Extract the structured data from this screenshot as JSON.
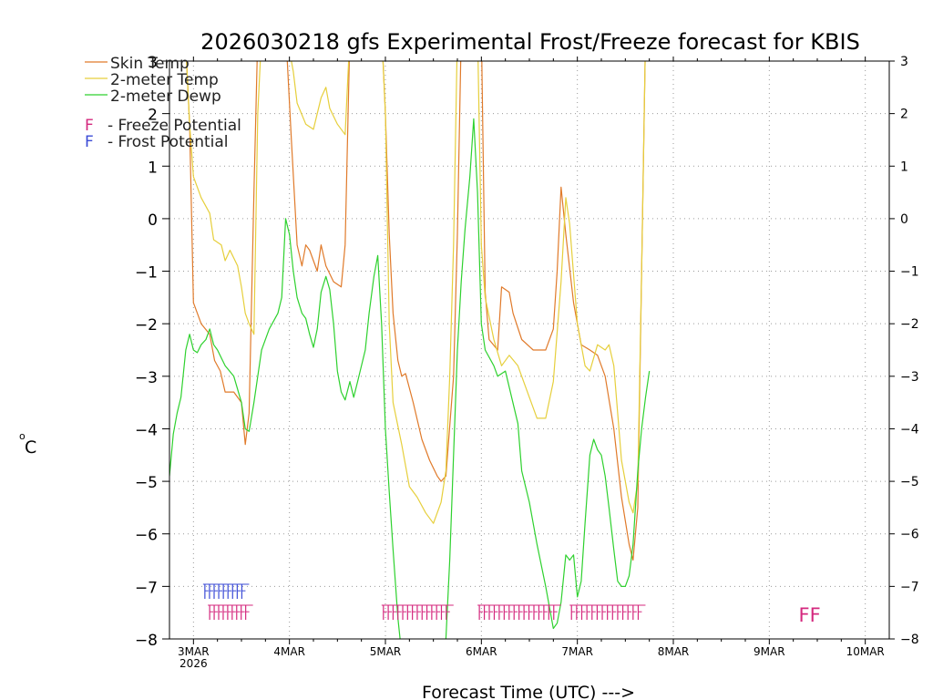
{
  "chart_data": {
    "type": "line",
    "title": "2026030218 gfs Experimental Frost/Freeze forecast for KBIS",
    "xlabel": "Forecast Time (UTC) --->",
    "ylabel": "°C",
    "ylabel_degree": "o",
    "ylabel_unit": "C",
    "ylim": [
      -8,
      3
    ],
    "xlim": [
      -0.25,
      7.25
    ],
    "yticks": [
      -8,
      -7,
      -6,
      -5,
      -4,
      -3,
      -2,
      -1,
      0,
      1,
      2,
      3
    ],
    "ytick_labels": [
      "−8",
      "−7",
      "−6",
      "−5",
      "−4",
      "−3",
      "−2",
      "−1",
      "0",
      "1",
      "2",
      "3"
    ],
    "right_ytick_labels": [
      "−8",
      "−7",
      "−6",
      "−5",
      "−4",
      "−3",
      "−2",
      "−1",
      "0",
      "1",
      "2",
      "3"
    ],
    "x_ticks": [
      {
        "x": 0,
        "label": "3MAR",
        "sublabel": "2026"
      },
      {
        "x": 1,
        "label": "4MAR"
      },
      {
        "x": 2,
        "label": "5MAR"
      },
      {
        "x": 3,
        "label": "6MAR"
      },
      {
        "x": 4,
        "label": "7MAR"
      },
      {
        "x": 5,
        "label": "8MAR"
      },
      {
        "x": 6,
        "label": "9MAR"
      },
      {
        "x": 7,
        "label": "10MAR"
      }
    ],
    "grid": true,
    "colors": {
      "skin": "#e07a2a",
      "temp2m": "#e6cf3c",
      "dewp": "#2ed12e",
      "freeze": "#d4287e",
      "frost": "#3b4bd6"
    },
    "legend": {
      "skin_temp": "Skin Temp",
      "temp_2m": "2-meter Temp",
      "dewp_2m": "2-meter Dewp",
      "freeze_letter": "F",
      "freeze_text": "- Freeze Potential",
      "frost_letter": "F",
      "frost_text": "- Frost Potential"
    },
    "series": [
      {
        "name": "Skin Temp",
        "color_key": "skin",
        "points": [
          [
            -0.2,
            3.6
          ],
          [
            -0.08,
            3.3
          ],
          [
            -0.04,
            1.8
          ],
          [
            0.0,
            -1.6
          ],
          [
            0.08,
            -2.0
          ],
          [
            0.17,
            -2.2
          ],
          [
            0.22,
            -2.7
          ],
          [
            0.28,
            -2.9
          ],
          [
            0.33,
            -3.3
          ],
          [
            0.42,
            -3.3
          ],
          [
            0.5,
            -3.5
          ],
          [
            0.54,
            -4.3
          ],
          [
            0.58,
            -3.7
          ],
          [
            0.63,
            0.5
          ],
          [
            0.67,
            3.5
          ],
          [
            0.96,
            3.6
          ],
          [
            1.02,
            1.5
          ],
          [
            1.08,
            -0.5
          ],
          [
            1.13,
            -0.9
          ],
          [
            1.17,
            -0.5
          ],
          [
            1.21,
            -0.6
          ],
          [
            1.29,
            -1.0
          ],
          [
            1.33,
            -0.5
          ],
          [
            1.38,
            -0.9
          ],
          [
            1.46,
            -1.2
          ],
          [
            1.54,
            -1.3
          ],
          [
            1.58,
            -0.5
          ],
          [
            1.63,
            3.5
          ],
          [
            1.96,
            3.6
          ],
          [
            2.0,
            2.0
          ],
          [
            2.04,
            -0.3
          ],
          [
            2.08,
            -1.8
          ],
          [
            2.13,
            -2.7
          ],
          [
            2.17,
            -3.0
          ],
          [
            2.21,
            -2.95
          ],
          [
            2.29,
            -3.5
          ],
          [
            2.38,
            -4.2
          ],
          [
            2.46,
            -4.6
          ],
          [
            2.54,
            -4.9
          ],
          [
            2.58,
            -5.0
          ],
          [
            2.63,
            -4.9
          ],
          [
            2.71,
            -3.0
          ],
          [
            2.75,
            -0.3
          ],
          [
            2.79,
            3.5
          ],
          [
            3.0,
            3.6
          ],
          [
            3.04,
            -1.4
          ],
          [
            3.08,
            -2.3
          ],
          [
            3.17,
            -2.5
          ],
          [
            3.21,
            -1.3
          ],
          [
            3.29,
            -1.4
          ],
          [
            3.33,
            -1.8
          ],
          [
            3.42,
            -2.3
          ],
          [
            3.54,
            -2.5
          ],
          [
            3.67,
            -2.5
          ],
          [
            3.75,
            -2.1
          ],
          [
            3.79,
            -1.0
          ],
          [
            3.83,
            0.6
          ],
          [
            3.88,
            -0.3
          ],
          [
            3.96,
            -1.6
          ],
          [
            4.04,
            -2.4
          ],
          [
            4.13,
            -2.5
          ],
          [
            4.21,
            -2.6
          ],
          [
            4.29,
            -3.0
          ],
          [
            4.38,
            -4.0
          ],
          [
            4.46,
            -5.3
          ],
          [
            4.54,
            -6.2
          ],
          [
            4.58,
            -6.5
          ],
          [
            4.63,
            -5.5
          ],
          [
            4.67,
            -1.0
          ],
          [
            4.71,
            3.5
          ],
          [
            4.75,
            3.6
          ]
        ]
      },
      {
        "name": "2-meter Temp",
        "color_key": "temp2m",
        "points": [
          [
            -0.2,
            3.6
          ],
          [
            -0.08,
            3.3
          ],
          [
            -0.04,
            1.8
          ],
          [
            0.0,
            0.8
          ],
          [
            0.08,
            0.4
          ],
          [
            0.17,
            0.1
          ],
          [
            0.21,
            -0.4
          ],
          [
            0.29,
            -0.5
          ],
          [
            0.33,
            -0.8
          ],
          [
            0.38,
            -0.6
          ],
          [
            0.46,
            -0.9
          ],
          [
            0.5,
            -1.3
          ],
          [
            0.54,
            -1.8
          ],
          [
            0.58,
            -2.0
          ],
          [
            0.63,
            -2.2
          ],
          [
            0.67,
            2.0
          ],
          [
            0.71,
            3.5
          ],
          [
            0.96,
            3.6
          ],
          [
            1.04,
            2.8
          ],
          [
            1.08,
            2.2
          ],
          [
            1.17,
            1.8
          ],
          [
            1.25,
            1.7
          ],
          [
            1.33,
            2.3
          ],
          [
            1.38,
            2.5
          ],
          [
            1.42,
            2.1
          ],
          [
            1.5,
            1.8
          ],
          [
            1.58,
            1.6
          ],
          [
            1.63,
            3.5
          ],
          [
            1.96,
            3.6
          ],
          [
            2.0,
            2.0
          ],
          [
            2.04,
            -2.0
          ],
          [
            2.08,
            -3.5
          ],
          [
            2.17,
            -4.3
          ],
          [
            2.25,
            -5.1
          ],
          [
            2.33,
            -5.3
          ],
          [
            2.42,
            -5.6
          ],
          [
            2.5,
            -5.8
          ],
          [
            2.58,
            -5.4
          ],
          [
            2.63,
            -4.8
          ],
          [
            2.67,
            -3.0
          ],
          [
            2.71,
            -0.5
          ],
          [
            2.75,
            3.5
          ],
          [
            2.96,
            3.6
          ],
          [
            3.0,
            -0.5
          ],
          [
            3.04,
            -1.5
          ],
          [
            3.13,
            -2.3
          ],
          [
            3.21,
            -2.8
          ],
          [
            3.29,
            -2.6
          ],
          [
            3.38,
            -2.8
          ],
          [
            3.5,
            -3.4
          ],
          [
            3.58,
            -3.8
          ],
          [
            3.67,
            -3.8
          ],
          [
            3.75,
            -3.1
          ],
          [
            3.83,
            -1.2
          ],
          [
            3.88,
            0.4
          ],
          [
            3.92,
            -0.1
          ],
          [
            4.0,
            -2.0
          ],
          [
            4.08,
            -2.8
          ],
          [
            4.13,
            -2.9
          ],
          [
            4.21,
            -2.4
          ],
          [
            4.29,
            -2.5
          ],
          [
            4.33,
            -2.4
          ],
          [
            4.38,
            -2.8
          ],
          [
            4.46,
            -4.6
          ],
          [
            4.54,
            -5.4
          ],
          [
            4.58,
            -5.6
          ],
          [
            4.63,
            -5.0
          ],
          [
            4.67,
            -1.0
          ],
          [
            4.71,
            3.5
          ],
          [
            4.75,
            3.6
          ]
        ]
      },
      {
        "name": "2-meter Dewp",
        "color_key": "dewp",
        "points": [
          [
            -0.25,
            -4.9
          ],
          [
            -0.21,
            -4.1
          ],
          [
            -0.17,
            -3.7
          ],
          [
            -0.13,
            -3.4
          ],
          [
            -0.08,
            -2.5
          ],
          [
            -0.04,
            -2.2
          ],
          [
            0.0,
            -2.5
          ],
          [
            0.04,
            -2.55
          ],
          [
            0.08,
            -2.4
          ],
          [
            0.13,
            -2.3
          ],
          [
            0.17,
            -2.1
          ],
          [
            0.21,
            -2.4
          ],
          [
            0.25,
            -2.5
          ],
          [
            0.33,
            -2.8
          ],
          [
            0.42,
            -3.0
          ],
          [
            0.5,
            -3.5
          ],
          [
            0.54,
            -4.0
          ],
          [
            0.58,
            -4.05
          ],
          [
            0.63,
            -3.5
          ],
          [
            0.67,
            -3.0
          ],
          [
            0.71,
            -2.5
          ],
          [
            0.79,
            -2.1
          ],
          [
            0.88,
            -1.8
          ],
          [
            0.92,
            -1.5
          ],
          [
            0.96,
            0.0
          ],
          [
            1.0,
            -0.3
          ],
          [
            1.04,
            -1.0
          ],
          [
            1.08,
            -1.5
          ],
          [
            1.13,
            -1.8
          ],
          [
            1.17,
            -1.9
          ],
          [
            1.21,
            -2.2
          ],
          [
            1.25,
            -2.45
          ],
          [
            1.29,
            -2.1
          ],
          [
            1.33,
            -1.4
          ],
          [
            1.38,
            -1.1
          ],
          [
            1.42,
            -1.35
          ],
          [
            1.46,
            -2.0
          ],
          [
            1.5,
            -2.9
          ],
          [
            1.54,
            -3.3
          ],
          [
            1.58,
            -3.45
          ],
          [
            1.63,
            -3.1
          ],
          [
            1.67,
            -3.4
          ],
          [
            1.71,
            -3.1
          ],
          [
            1.79,
            -2.5
          ],
          [
            1.83,
            -1.8
          ],
          [
            1.88,
            -1.1
          ],
          [
            1.92,
            -0.7
          ],
          [
            1.96,
            -2.0
          ],
          [
            2.0,
            -4.0
          ],
          [
            2.04,
            -5.2
          ],
          [
            2.08,
            -6.3
          ],
          [
            2.13,
            -7.6
          ],
          [
            2.17,
            -8.3
          ],
          [
            2.33,
            -8.3
          ],
          [
            2.38,
            -8.25
          ],
          [
            2.5,
            -8.3
          ],
          [
            2.63,
            -8.0
          ],
          [
            2.67,
            -6.5
          ],
          [
            2.71,
            -4.5
          ],
          [
            2.75,
            -2.5
          ],
          [
            2.79,
            -1.2
          ],
          [
            2.83,
            -0.2
          ],
          [
            2.88,
            0.8
          ],
          [
            2.92,
            1.9
          ],
          [
            2.96,
            0.5
          ],
          [
            3.0,
            -2.0
          ],
          [
            3.04,
            -2.5
          ],
          [
            3.13,
            -2.8
          ],
          [
            3.17,
            -3.0
          ],
          [
            3.25,
            -2.9
          ],
          [
            3.38,
            -3.9
          ],
          [
            3.42,
            -4.8
          ],
          [
            3.5,
            -5.4
          ],
          [
            3.58,
            -6.2
          ],
          [
            3.67,
            -7.0
          ],
          [
            3.75,
            -7.8
          ],
          [
            3.79,
            -7.7
          ],
          [
            3.83,
            -7.3
          ],
          [
            3.88,
            -6.4
          ],
          [
            3.92,
            -6.5
          ],
          [
            3.96,
            -6.4
          ],
          [
            4.0,
            -7.2
          ],
          [
            4.04,
            -6.9
          ],
          [
            4.08,
            -5.8
          ],
          [
            4.13,
            -4.5
          ],
          [
            4.17,
            -4.2
          ],
          [
            4.21,
            -4.4
          ],
          [
            4.25,
            -4.5
          ],
          [
            4.29,
            -4.9
          ],
          [
            4.33,
            -5.5
          ],
          [
            4.38,
            -6.3
          ],
          [
            4.42,
            -6.9
          ],
          [
            4.46,
            -7.0
          ],
          [
            4.5,
            -7.0
          ],
          [
            4.54,
            -6.8
          ],
          [
            4.58,
            -6.2
          ],
          [
            4.63,
            -4.8
          ],
          [
            4.67,
            -4.0
          ],
          [
            4.71,
            -3.4
          ],
          [
            4.75,
            -2.9
          ]
        ]
      }
    ],
    "frost_marks": [
      {
        "x_start": 0.1,
        "x_end": 0.58,
        "count": 9
      }
    ],
    "freeze_marks": [
      {
        "x_start": 0.15,
        "x_end": 0.62,
        "count": 9
      },
      {
        "x_start": 1.96,
        "x_end": 2.71,
        "count": 14
      },
      {
        "x_start": 2.96,
        "x_end": 3.83,
        "count": 16
      },
      {
        "x_start": 3.92,
        "x_end": 4.71,
        "count": 14
      }
    ],
    "freeze_text_mark": {
      "x": 6.42,
      "label": "FF"
    }
  }
}
